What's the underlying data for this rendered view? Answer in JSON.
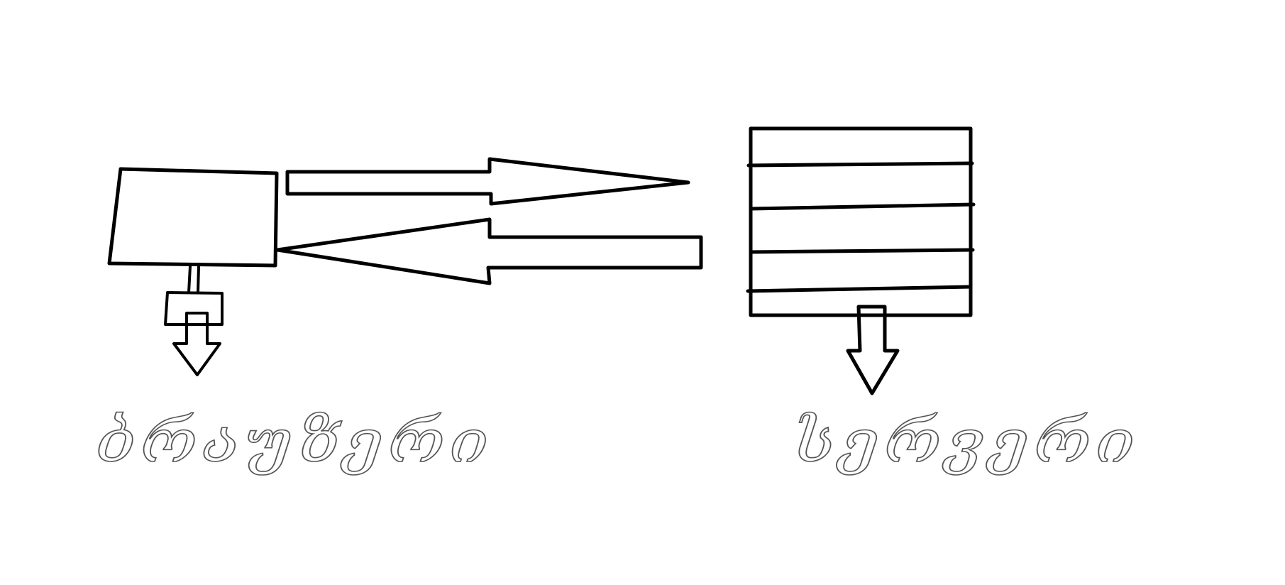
{
  "diagram": {
    "background_color": "#ffffff",
    "stroke_color": "#000000",
    "handwriting_color": "#555555",
    "nodes": [
      {
        "id": "client",
        "shape": "box",
        "label": ""
      },
      {
        "id": "server",
        "shape": "lined-box",
        "lines": 4,
        "label": ""
      }
    ],
    "edges": [
      {
        "from": "client",
        "to": "server",
        "style": "block-arrow"
      },
      {
        "from": "server",
        "to": "client",
        "style": "block-arrow"
      },
      {
        "from": "client",
        "to": "client_label",
        "style": "down-arrow"
      },
      {
        "from": "server",
        "to": "server_label",
        "style": "down-arrow"
      }
    ],
    "labels": {
      "client_label": "ბრაუზერი",
      "server_label": "სერვერი"
    }
  }
}
